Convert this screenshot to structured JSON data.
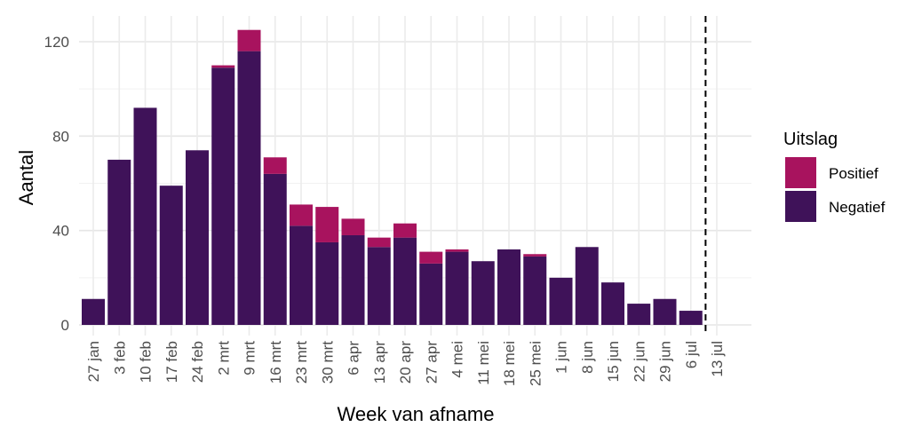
{
  "chart_data": {
    "type": "bar",
    "stacked": true,
    "xlabel": "Week van afname",
    "ylabel": "Aantal",
    "ylim": [
      0,
      130
    ],
    "yticks": [
      0,
      40,
      80,
      120
    ],
    "grid": true,
    "categories": [
      "27 jan",
      "3 feb",
      "10 feb",
      "17 feb",
      "24 feb",
      "2 mrt",
      "9 mrt",
      "16 mrt",
      "23 mrt",
      "30 mrt",
      "6 apr",
      "13 apr",
      "20 apr",
      "27 apr",
      "4 mei",
      "11 mei",
      "18 mei",
      "25 mei",
      "1 jun",
      "8 jun",
      "15 jun",
      "22 jun",
      "29 jun",
      "6 jul",
      "13 jul"
    ],
    "series": [
      {
        "name": "Negatief",
        "color": "#3f1259",
        "values": [
          11,
          70,
          92,
          59,
          74,
          109,
          116,
          64,
          42,
          35,
          38,
          33,
          37,
          26,
          31,
          27,
          32,
          29,
          20,
          33,
          18,
          9,
          11,
          6,
          0
        ]
      },
      {
        "name": "Positief",
        "color": "#a8135e",
        "values": [
          0,
          0,
          0,
          0,
          0,
          1,
          9,
          7,
          9,
          15,
          7,
          4,
          6,
          5,
          1,
          0,
          0,
          1,
          0,
          0,
          0,
          0,
          0,
          0,
          0
        ]
      }
    ],
    "legend": {
      "title": "Uitslag",
      "position": "right",
      "items": [
        "Positief",
        "Negatief"
      ]
    },
    "reference_line": {
      "style": "dashed",
      "between": [
        "6 jul",
        "13 jul"
      ]
    }
  }
}
